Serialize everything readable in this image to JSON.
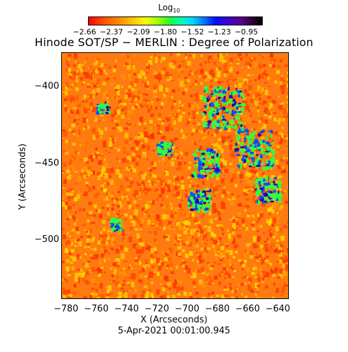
{
  "colorbar": {
    "title": "Log",
    "title_sub": "10",
    "ticks": [
      "−2.66",
      "−2.37",
      "−2.09",
      "−1.80",
      "−1.52",
      "−1.23",
      "−0.95"
    ]
  },
  "title": "Hinode SOT/SP − MERLIN : Degree of Polarization",
  "axes": {
    "xlabel": "X (Arcseconds)",
    "ylabel": "Y (Arcseconds)",
    "xticks": [
      "−780",
      "−760",
      "−740",
      "−720",
      "−700",
      "−680",
      "−660",
      "−640"
    ],
    "yticks": [
      "−400",
      "−450",
      "−500"
    ]
  },
  "timestamp": "5-Apr-2021 00:01:00.945",
  "image_colors": {
    "background": "#ff7a10",
    "low": "#ff2a00",
    "mid": "#ffd000",
    "high_green": "#30ff40",
    "high_blue": "#0050ff",
    "peak": "#2a00a0"
  }
}
